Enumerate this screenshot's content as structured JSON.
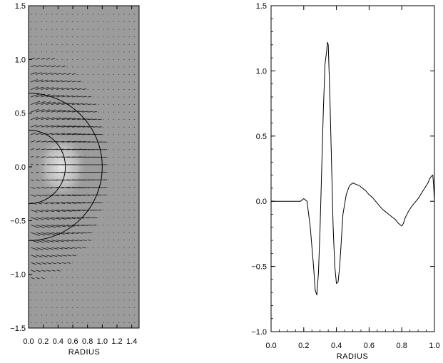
{
  "chart_data": [
    {
      "type": "vector-field",
      "title": "",
      "xlabel": "RADIUS",
      "ylabel": "",
      "xlim": [
        0.0,
        1.5
      ],
      "ylim": [
        -1.5,
        1.5
      ],
      "xticks": [
        "0.0",
        "0.2",
        "0.4",
        "0.6",
        "0.8",
        "1.0",
        "1.2",
        "1.4"
      ],
      "yticks": [
        "1.5",
        "1.0",
        "0.5",
        "0.0",
        "−0.5",
        "−1.0",
        "−1.5"
      ],
      "grid": false,
      "background": "#9c9c9c",
      "circles": [
        {
          "center": [
            0,
            0
          ],
          "radius": 1.0
        },
        {
          "center": [
            0,
            0
          ],
          "radius": 0.5
        }
      ],
      "highlight": {
        "center": [
          0.45,
          0.0
        ],
        "radius": 0.35,
        "color": "#e6e6e6"
      }
    },
    {
      "type": "line",
      "title": "",
      "xlabel": "RADIUS",
      "ylabel": "",
      "xlim": [
        0.0,
        1.0
      ],
      "ylim": [
        -1.0,
        1.5
      ],
      "xticks": [
        "0.0",
        "0.2",
        "0.4",
        "0.6",
        "0.8",
        "1.0"
      ],
      "yticks": [
        "1.5",
        "1.0",
        "0.5",
        "0.0",
        "−0.5",
        "−1.0"
      ],
      "grid": false,
      "series": [
        {
          "color": "#000000",
          "x": [
            0.0,
            0.1,
            0.18,
            0.2,
            0.22,
            0.24,
            0.26,
            0.27,
            0.28,
            0.29,
            0.3,
            0.31,
            0.32,
            0.33,
            0.34,
            0.345,
            0.35,
            0.36,
            0.37,
            0.38,
            0.39,
            0.4,
            0.41,
            0.42,
            0.43,
            0.44,
            0.46,
            0.48,
            0.5,
            0.52,
            0.54,
            0.56,
            0.58,
            0.6,
            0.62,
            0.64,
            0.66,
            0.68,
            0.7,
            0.72,
            0.74,
            0.76,
            0.78,
            0.79,
            0.8,
            0.81,
            0.82,
            0.84,
            0.86,
            0.88,
            0.9,
            0.92,
            0.94,
            0.96,
            0.97,
            0.98,
            0.99,
            0.995,
            1.0
          ],
          "y": [
            0.0,
            0.0,
            0.0,
            0.02,
            0.0,
            -0.2,
            -0.5,
            -0.68,
            -0.72,
            -0.55,
            -0.2,
            0.25,
            0.7,
            1.05,
            1.15,
            1.22,
            1.2,
            0.8,
            0.3,
            -0.2,
            -0.5,
            -0.63,
            -0.62,
            -0.5,
            -0.3,
            -0.1,
            0.05,
            0.12,
            0.14,
            0.13,
            0.12,
            0.1,
            0.08,
            0.05,
            0.03,
            0.0,
            -0.03,
            -0.06,
            -0.08,
            -0.1,
            -0.12,
            -0.14,
            -0.17,
            -0.18,
            -0.19,
            -0.17,
            -0.13,
            -0.08,
            -0.04,
            -0.01,
            0.02,
            0.06,
            0.1,
            0.14,
            0.17,
            0.19,
            0.2,
            0.12,
            0.0
          ]
        }
      ]
    }
  ]
}
